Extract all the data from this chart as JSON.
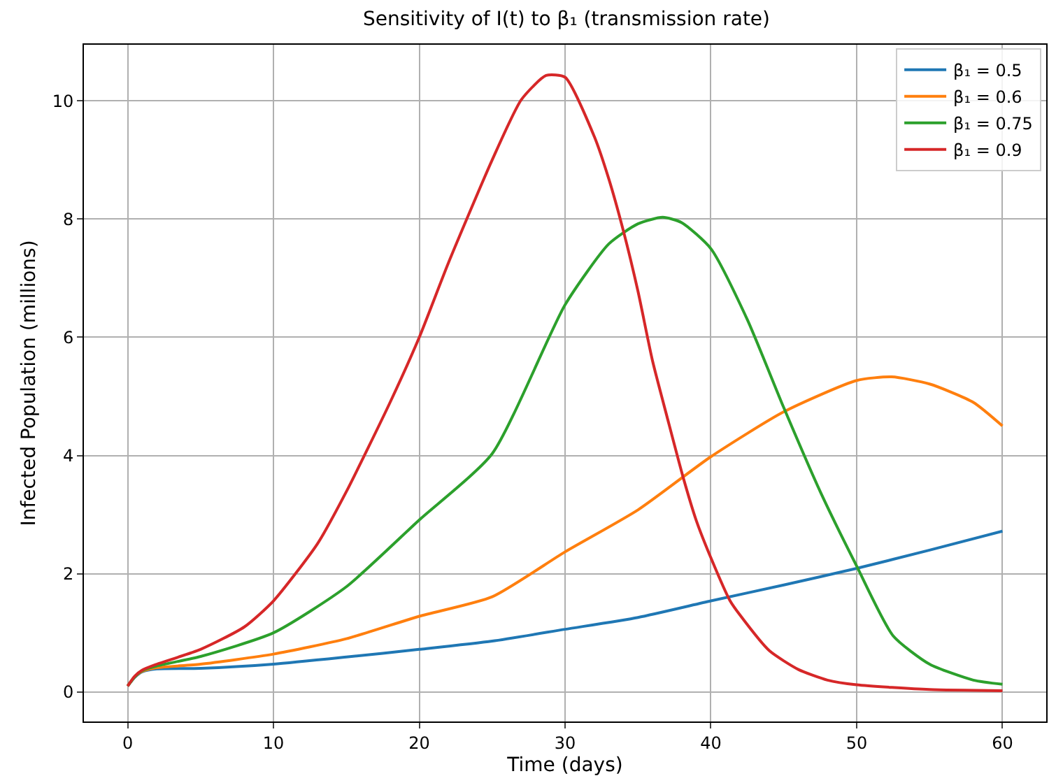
{
  "chart_data": {
    "type": "line",
    "title": "Sensitivity of I(t) to β₁ (transmission rate)",
    "xlabel": "Time (days)",
    "ylabel": "Infected Population (millions)",
    "xlim": [
      -3,
      63
    ],
    "xticks": [
      0,
      10,
      20,
      30,
      40,
      50,
      60
    ],
    "ylim": [
      -0.5,
      10.95
    ],
    "yticks": [
      0,
      2,
      4,
      6,
      8,
      10
    ],
    "grid": true,
    "legend": "top right",
    "marker": "none",
    "line_style": "solid",
    "series": [
      {
        "name": "β₁ = 0.5",
        "color": "#1f77b4",
        "x": [
          0,
          0.5,
          1,
          2,
          5,
          10,
          15,
          20,
          25,
          30,
          35,
          40,
          45,
          50,
          55,
          60
        ],
        "values": [
          0.1,
          0.25,
          0.34,
          0.39,
          0.4,
          0.47,
          0.59,
          0.72,
          0.86,
          1.06,
          1.26,
          1.54,
          1.81,
          2.09,
          2.4,
          2.72
        ]
      },
      {
        "name": "β₁ = 0.6",
        "color": "#ff7f0e",
        "x": [
          0,
          0.5,
          1,
          2,
          5,
          10,
          15,
          20,
          25,
          30,
          35,
          40,
          45,
          50,
          52.4,
          55,
          58,
          60
        ],
        "values": [
          0.1,
          0.26,
          0.35,
          0.41,
          0.47,
          0.64,
          0.9,
          1.28,
          1.61,
          2.37,
          3.08,
          3.98,
          4.74,
          5.27,
          5.33,
          5.21,
          4.9,
          4.5
        ]
      },
      {
        "name": "β₁ = 0.75",
        "color": "#2ca02c",
        "x": [
          0,
          0.5,
          1,
          2,
          5,
          10,
          15,
          20,
          25,
          30,
          33,
          35,
          36.7,
          38,
          40,
          42.5,
          45,
          47.5,
          50,
          52.5,
          55,
          58,
          60
        ],
        "values": [
          0.1,
          0.26,
          0.36,
          0.44,
          0.6,
          1.0,
          1.78,
          2.91,
          4.03,
          6.55,
          7.58,
          7.92,
          8.03,
          7.94,
          7.5,
          6.3,
          4.81,
          3.39,
          2.13,
          0.95,
          0.47,
          0.2,
          0.13
        ]
      },
      {
        "name": "β₁ = 0.9",
        "color": "#d62728",
        "x": [
          0,
          0.5,
          1,
          2,
          5,
          8,
          10,
          13,
          15,
          18,
          20,
          22,
          25,
          27,
          28.7,
          30,
          32,
          33,
          34,
          35,
          36,
          37,
          38.1,
          39,
          40,
          41.3,
          42,
          44,
          46,
          48,
          50,
          55,
          60
        ],
        "values": [
          0.1,
          0.27,
          0.37,
          0.47,
          0.72,
          1.1,
          1.54,
          2.5,
          3.39,
          4.9,
          6.0,
          7.26,
          9.0,
          10.02,
          10.43,
          10.4,
          9.4,
          8.68,
          7.8,
          6.78,
          5.6,
          4.65,
          3.63,
          2.9,
          2.27,
          1.55,
          1.3,
          0.7,
          0.38,
          0.2,
          0.12,
          0.04,
          0.02
        ]
      }
    ]
  }
}
